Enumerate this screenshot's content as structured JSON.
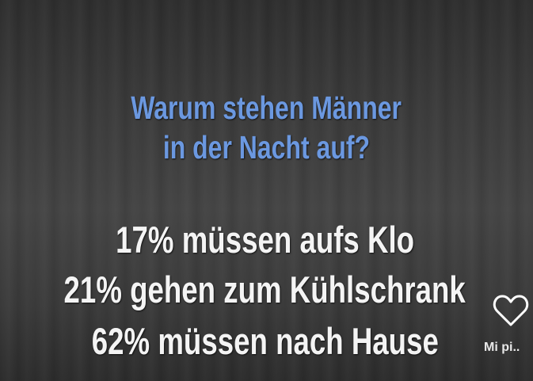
{
  "question": {
    "line1": "Warum stehen Männer",
    "line2": "in der Nacht auf?",
    "color": "#6b98e0"
  },
  "answers": [
    "17% müssen aufs Klo",
    "21% gehen zum Kühlschrank",
    "62% müssen nach Hause"
  ],
  "overlay": {
    "like_icon": "heart-icon",
    "like_label": "Mi pi.."
  }
}
